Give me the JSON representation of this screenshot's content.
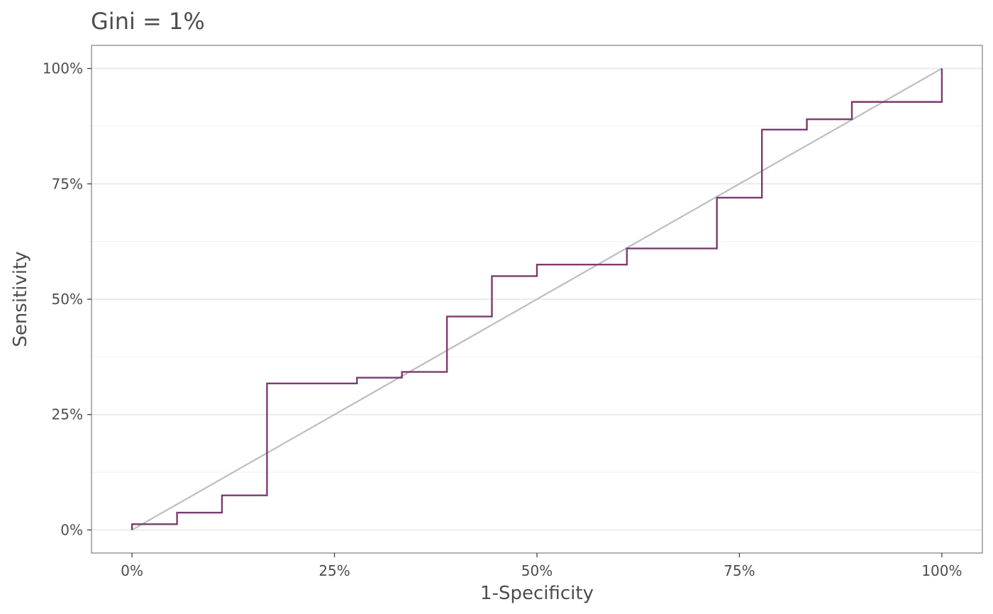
{
  "chart_data": {
    "type": "line",
    "title": "Gini = 1%",
    "xlabel": "1-Specificity",
    "ylabel": "Sensitivity",
    "xlim": [
      -0.05,
      1.05
    ],
    "ylim": [
      -0.05,
      1.05
    ],
    "x_ticks": [
      {
        "value": 0,
        "label": "0%"
      },
      {
        "value": 0.25,
        "label": "25%"
      },
      {
        "value": 0.5,
        "label": "50%"
      },
      {
        "value": 0.75,
        "label": "75%"
      },
      {
        "value": 1,
        "label": "100%"
      }
    ],
    "y_ticks": [
      {
        "value": 0,
        "label": "0%"
      },
      {
        "value": 0.25,
        "label": "25%"
      },
      {
        "value": 0.5,
        "label": "50%"
      },
      {
        "value": 0.75,
        "label": "75%"
      },
      {
        "value": 1,
        "label": "100%"
      }
    ],
    "y_minor_ticks": [
      0.125,
      0.375,
      0.625,
      0.875
    ],
    "grid": true,
    "panel_border": true,
    "series": [
      {
        "kind": "step",
        "color": "#7b3b6e",
        "x": [
          0,
          0,
          0.0556,
          0.0556,
          0.1111,
          0.1111,
          0.1667,
          0.1667,
          0.2778,
          0.2778,
          0.3333,
          0.3333,
          0.3889,
          0.3889,
          0.4444,
          0.4444,
          0.5,
          0.5,
          0.6111,
          0.6111,
          0.7222,
          0.7222,
          0.7778,
          0.7778,
          0.8333,
          0.8333,
          0.8889,
          0.8889,
          1,
          1
        ],
        "y": [
          0,
          0.0125,
          0.0125,
          0.0375,
          0.0375,
          0.075,
          0.075,
          0.3175,
          0.3175,
          0.33,
          0.33,
          0.3425,
          0.3425,
          0.4625,
          0.4625,
          0.55,
          0.55,
          0.575,
          0.575,
          0.61,
          0.61,
          0.72,
          0.72,
          0.8675,
          0.8675,
          0.89,
          0.89,
          0.9275,
          0.9275,
          1
        ]
      },
      {
        "kind": "diagonal",
        "color": "#bdbdbd",
        "x": [
          0,
          1
        ],
        "y": [
          0,
          1
        ]
      }
    ]
  },
  "colors": {
    "roc_line": "#7b3b6e",
    "diagonal": "#bdbdbd",
    "grid_major": "#ebebeb",
    "grid_minor": "#f2f2f2",
    "panel_border": "#7f7f7f",
    "text": "#4d4d4d"
  }
}
